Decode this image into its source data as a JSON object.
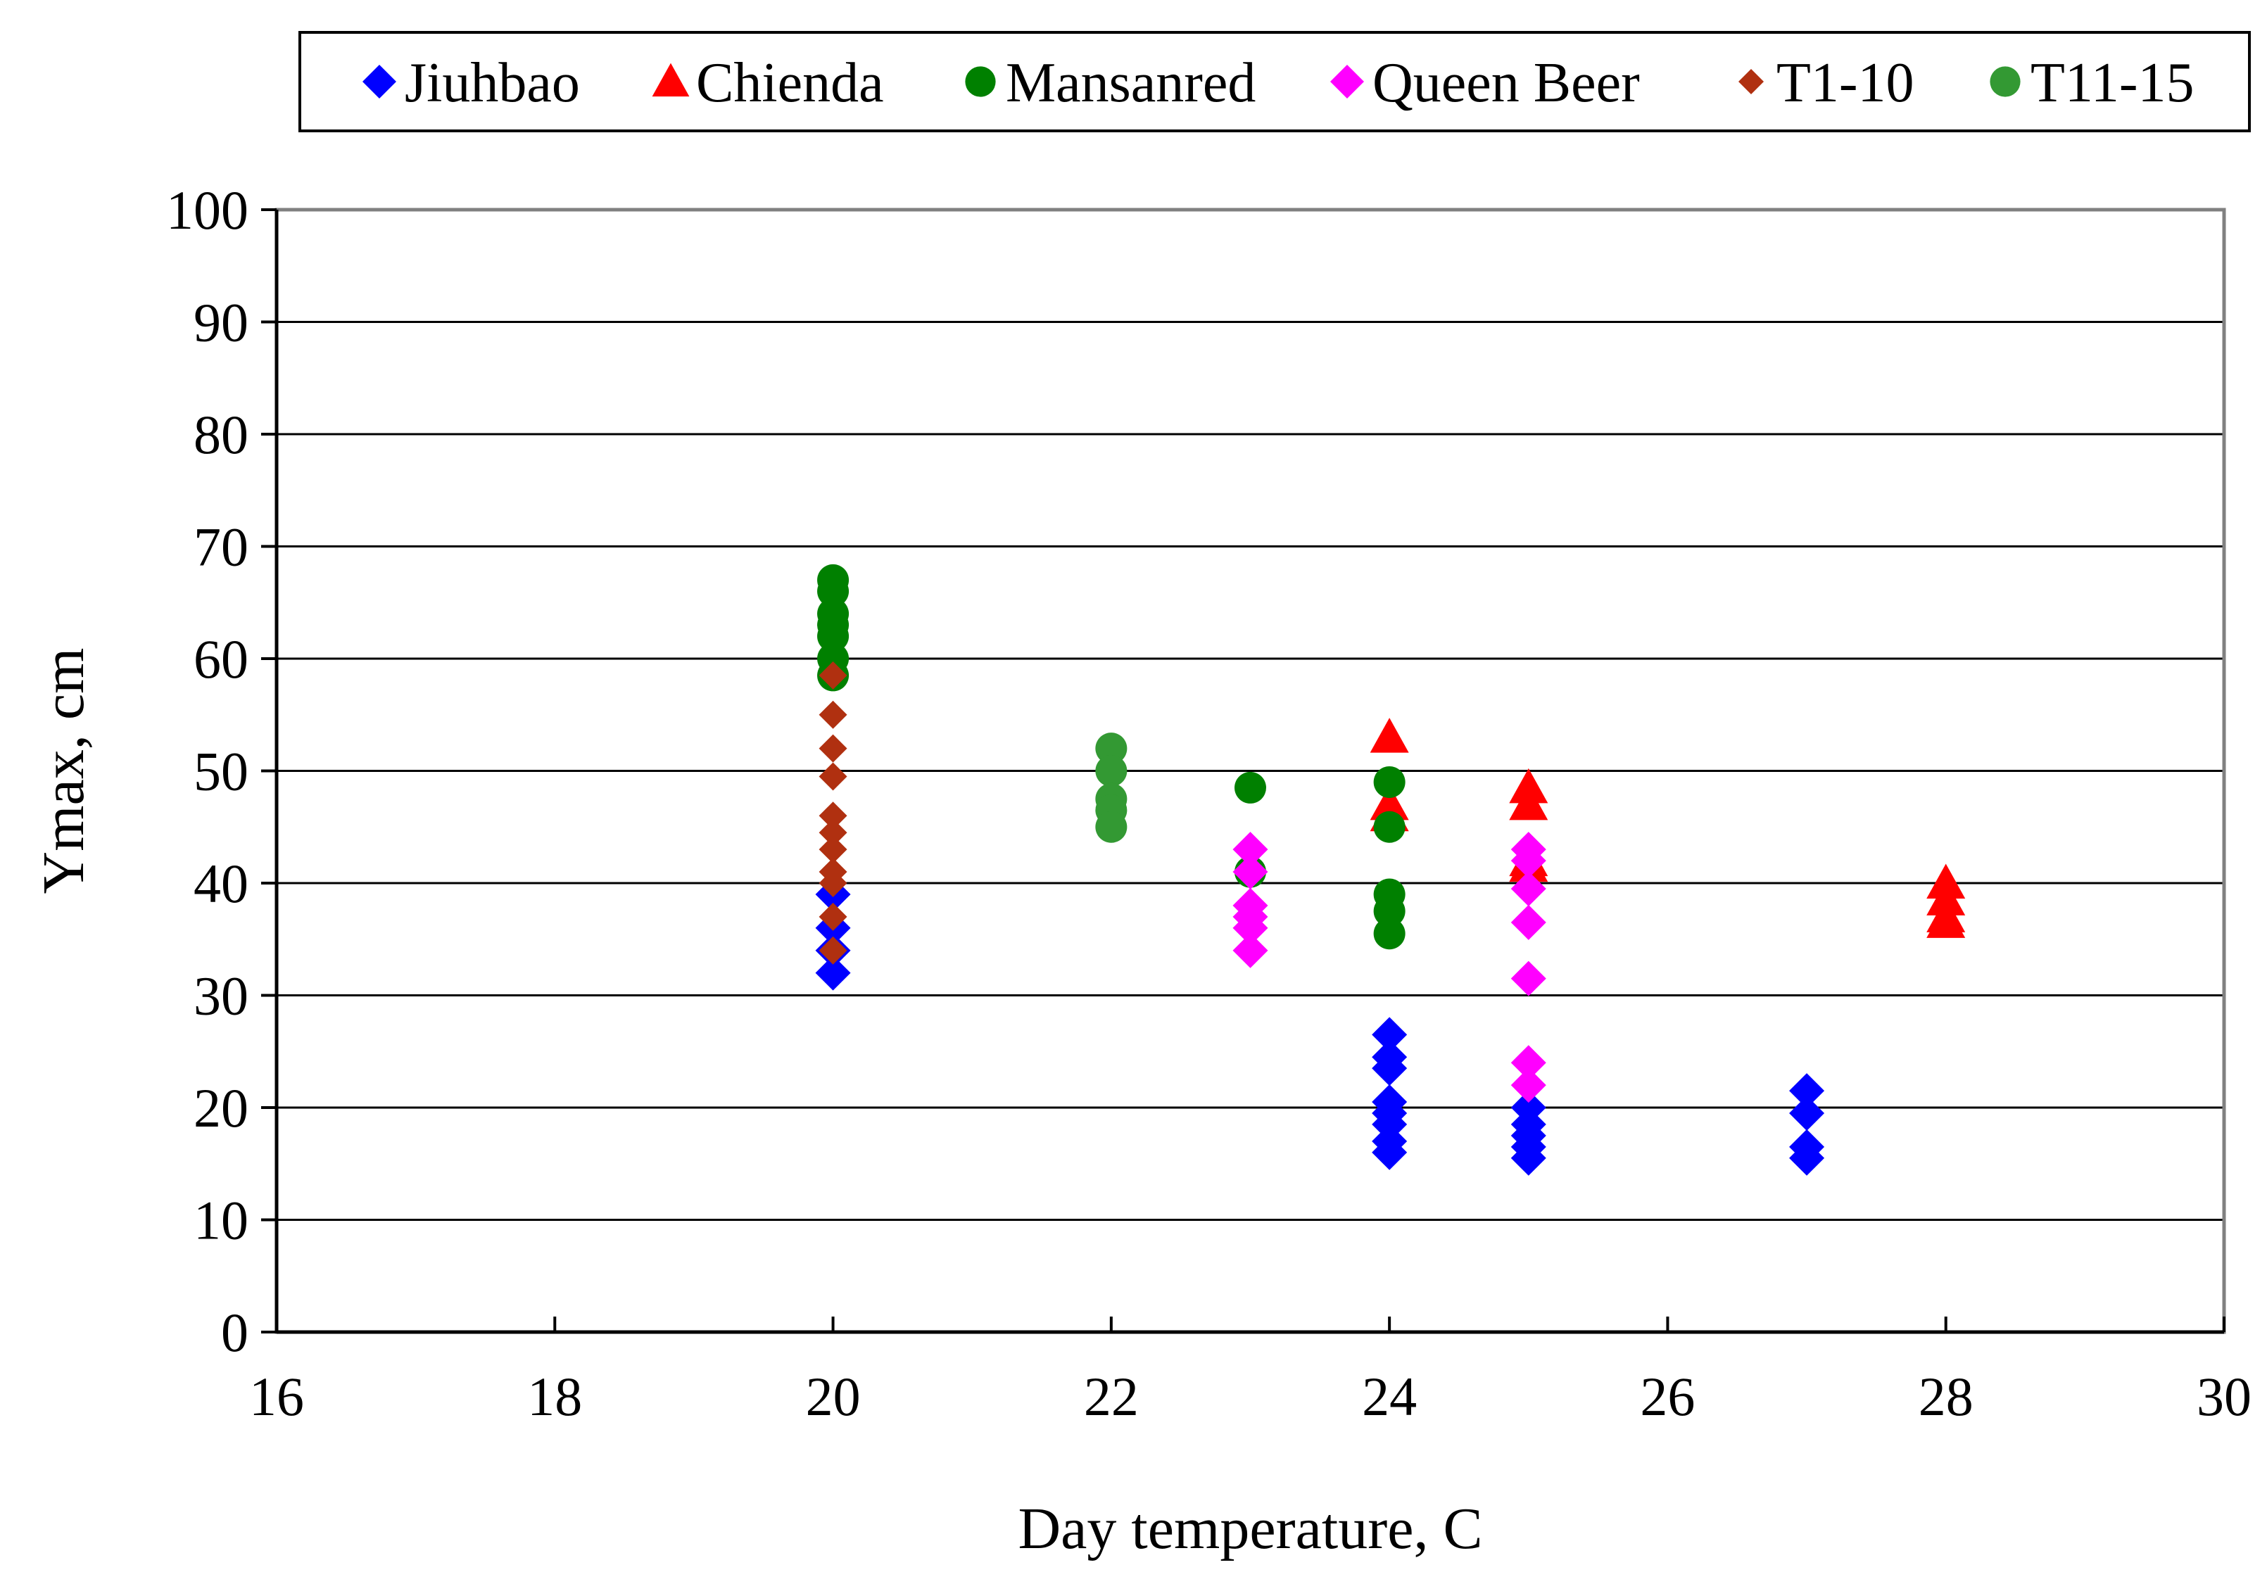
{
  "chart_data": {
    "type": "scatter",
    "xlabel": "Day temperature, C",
    "ylabel": "Ymax, cm",
    "xlim": [
      16,
      30
    ],
    "ylim": [
      0,
      100
    ],
    "xticks": [
      "16",
      "18",
      "20",
      "22",
      "24",
      "26",
      "28",
      "30"
    ],
    "yticks": [
      "0",
      "10",
      "20",
      "30",
      "40",
      "50",
      "60",
      "70",
      "80",
      "90",
      "100"
    ],
    "grid": "horizontal",
    "legend_position": "top",
    "series": [
      {
        "name": "Jiuhbao",
        "marker": "diamond",
        "color": "#0000ff",
        "points": [
          [
            20,
            39.0
          ],
          [
            20,
            36.0
          ],
          [
            20,
            34.0
          ],
          [
            20,
            32.0
          ],
          [
            24,
            26.5
          ],
          [
            24,
            24.5
          ],
          [
            24,
            23.5
          ],
          [
            24,
            20.5
          ],
          [
            24,
            19.5
          ],
          [
            24,
            18.5
          ],
          [
            24,
            17.0
          ],
          [
            24,
            16.0
          ],
          [
            25,
            20.0
          ],
          [
            25,
            18.5
          ],
          [
            25,
            17.5
          ],
          [
            25,
            16.5
          ],
          [
            25,
            15.5
          ],
          [
            27,
            21.5
          ],
          [
            27,
            19.5
          ],
          [
            27,
            16.5
          ],
          [
            27,
            15.5
          ]
        ]
      },
      {
        "name": "Chienda",
        "marker": "triangle",
        "color": "#ff0000",
        "points": [
          [
            24,
            53.0
          ],
          [
            24,
            47.0
          ],
          [
            24,
            46.0
          ],
          [
            25,
            48.5
          ],
          [
            25,
            47.0
          ],
          [
            25,
            42.0
          ],
          [
            25,
            41.5
          ],
          [
            28,
            40.0
          ],
          [
            28,
            38.5
          ],
          [
            28,
            37.0
          ],
          [
            28,
            36.5
          ]
        ]
      },
      {
        "name": "Mansanred",
        "marker": "circle",
        "color": "#008000",
        "points": [
          [
            20,
            67.0
          ],
          [
            20,
            66.0
          ],
          [
            20,
            64.0
          ],
          [
            20,
            63.0
          ],
          [
            20,
            62.0
          ],
          [
            20,
            60.0
          ],
          [
            20,
            58.5
          ],
          [
            23,
            48.5
          ],
          [
            23,
            41.0
          ],
          [
            24,
            49.0
          ],
          [
            24,
            45.0
          ],
          [
            24,
            39.0
          ],
          [
            24,
            37.5
          ],
          [
            24,
            35.5
          ]
        ]
      },
      {
        "name": "Queen Beer",
        "marker": "diamond",
        "color": "#ff00ff",
        "points": [
          [
            23,
            43.0
          ],
          [
            23,
            41.0
          ],
          [
            23,
            38.0
          ],
          [
            23,
            37.0
          ],
          [
            23,
            36.0
          ],
          [
            23,
            34.0
          ],
          [
            25,
            43.0
          ],
          [
            25,
            42.0
          ],
          [
            25,
            39.5
          ],
          [
            25,
            36.5
          ],
          [
            25,
            31.5
          ],
          [
            25,
            24.0
          ],
          [
            25,
            22.0
          ]
        ]
      },
      {
        "name": "T1-10",
        "marker": "diamond",
        "color": "#b03010",
        "points": [
          [
            20,
            58.5
          ],
          [
            20,
            55.0
          ],
          [
            20,
            52.0
          ],
          [
            20,
            49.5
          ],
          [
            20,
            46.0
          ],
          [
            20,
            44.5
          ],
          [
            20,
            43.0
          ],
          [
            20,
            41.0
          ],
          [
            20,
            40.0
          ],
          [
            20,
            37.0
          ],
          [
            20,
            34.0
          ]
        ]
      },
      {
        "name": "T11-15",
        "marker": "circle",
        "color": "#339933",
        "points": [
          [
            22,
            52.0
          ],
          [
            22,
            50.0
          ],
          [
            22,
            47.5
          ],
          [
            22,
            46.5
          ],
          [
            22,
            45.0
          ]
        ]
      }
    ]
  }
}
